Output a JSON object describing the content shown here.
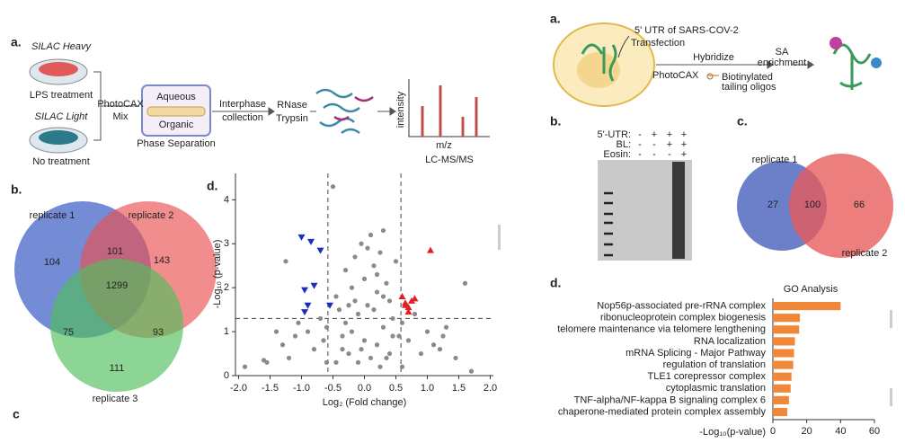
{
  "left": {
    "a": {
      "label": "a.",
      "heavy": "SILAC Heavy",
      "heavy_treatment": "LPS treatment",
      "light": "SILAC Light",
      "light_treatment": "No treatment",
      "mix": [
        "PhotoCAX",
        "Mix"
      ],
      "aqueous": "Aqueous",
      "organic": "Organic",
      "phase": "Phase Separation",
      "interphase": [
        "Interphase",
        "collection"
      ],
      "digest": [
        "RNase",
        "Trypsin"
      ],
      "intensity": "intensity",
      "mz": "m/z",
      "ms": "LC-MS/MS"
    },
    "b": {
      "label": "b.",
      "sets": [
        "replicate 1",
        "replicate 2",
        "replicate 3"
      ],
      "counts": {
        "only1": 104,
        "r12": 101,
        "only2": 143,
        "all": 1299,
        "r13": 75,
        "r23": 93,
        "only3": 111
      }
    },
    "c_label": "c",
    "d_label": "d."
  },
  "right": {
    "a": {
      "label": "a.",
      "utr": "5' UTR of SARS-COV-2",
      "transfection": "Transfection",
      "photocax": "PhotoCAX",
      "hybridize": "Hybridize",
      "oligos": [
        "Biotinylated",
        "tailing oligos"
      ],
      "sa": [
        "SA",
        "enrichment"
      ]
    },
    "b": {
      "label": "b.",
      "rows": [
        {
          "name": "5'-UTR:",
          "lanes": [
            "-",
            "+",
            "+",
            "+"
          ]
        },
        {
          "name": "BL:",
          "lanes": [
            "-",
            "-",
            "+",
            "+"
          ]
        },
        {
          "name": "Eosin:",
          "lanes": [
            "-",
            "-",
            "-",
            "+"
          ]
        }
      ]
    },
    "c": {
      "label": "c.",
      "sets": [
        "replicate 1",
        "replicate 2"
      ],
      "counts": {
        "only1": 27,
        "both": 100,
        "only2": 66
      }
    },
    "d_label": "d."
  },
  "chart_data": [
    {
      "type": "scatter",
      "xlabel": "Log₂ (Fold change)",
      "ylabel": "-Log₁₀ (p-value)",
      "xlim": [
        -2.05,
        2.05
      ],
      "ylim": [
        0,
        4.6
      ],
      "xticks": [
        {
          "value": -2,
          "label": "-2.0"
        },
        {
          "value": -1.5,
          "label": "-1.5"
        },
        {
          "value": -1,
          "label": "-1.0"
        },
        {
          "value": -0.5,
          "label": "-0.5"
        },
        {
          "value": 0,
          "label": "0.0"
        },
        {
          "value": 0.5,
          "label": "0.5"
        },
        {
          "value": 1,
          "label": "1.0"
        },
        {
          "value": 1.5,
          "label": "1.5"
        },
        {
          "value": 2,
          "label": "2.0"
        }
      ],
      "yticks": [
        0,
        1,
        2,
        3,
        4
      ],
      "vlines": [
        -0.58,
        0.58
      ],
      "hline": 1.3,
      "series": [
        {
          "color": "#8a8a8a",
          "marker": "circle",
          "x": [
            -1.9,
            -1.6,
            -1.55,
            -1.4,
            -1.3,
            -1.2,
            -1.1,
            -1.05,
            -0.9,
            -0.8,
            -0.7,
            -0.65,
            -0.6,
            -0.5,
            -0.45,
            -0.4,
            -0.35,
            -0.3,
            -0.3,
            -0.25,
            -0.2,
            -0.2,
            -0.15,
            -0.1,
            -0.1,
            -0.05,
            0,
            0,
            0.05,
            0.1,
            0.1,
            0.15,
            0.2,
            0.2,
            0.25,
            0.3,
            0.3,
            0.35,
            0.4,
            0.4,
            0.45,
            0.5,
            0.55,
            0.6,
            0.7,
            0.8,
            0.9,
            1.0,
            1.1,
            1.2,
            1.3,
            1.45,
            1.6,
            1.7,
            -0.45,
            0.25,
            0.15,
            -0.05,
            0.3,
            0.2,
            -0.35,
            0.45,
            -0.6,
            0.6,
            -1.25,
            1.25,
            -0.15,
            0.05,
            0.35,
            -0.25
          ],
          "values": [
            0.2,
            0.35,
            0.3,
            1.0,
            0.7,
            0.4,
            0.9,
            1.2,
            1.0,
            0.6,
            1.3,
            0.8,
            1.1,
            4.3,
            1.8,
            1.5,
            0.9,
            2.4,
            1.2,
            0.5,
            2.0,
            1.0,
            2.7,
            1.4,
            0.3,
            3.0,
            2.2,
            0.8,
            1.6,
            3.2,
            0.4,
            2.5,
            1.9,
            0.7,
            2.8,
            3.3,
            1.1,
            2.1,
            1.7,
            0.5,
            1.3,
            2.6,
            0.9,
            1.2,
            0.8,
            1.4,
            0.5,
            1.0,
            0.7,
            0.6,
            1.1,
            0.4,
            2.1,
            0.1,
            0.3,
            0.2,
            1.5,
            0.6,
            1.8,
            2.3,
            0.6,
            0.9,
            0.3,
            0.2,
            2.6,
            0.9,
            1.7,
            2.9,
            0.4,
            1.6
          ]
        },
        {
          "color": "#1a2fc0",
          "marker": "triangle-down",
          "x": [
            -1.0,
            -0.85,
            -0.7,
            -0.8,
            -0.95,
            -0.9,
            -0.55,
            -0.95
          ],
          "values": [
            3.15,
            3.05,
            2.85,
            2.05,
            1.95,
            1.6,
            1.6,
            1.45
          ]
        },
        {
          "color": "#e02020",
          "marker": "triangle-up",
          "x": [
            1.05,
            0.6,
            0.65,
            0.7,
            0.75,
            0.8,
            0.7,
            0.65
          ],
          "values": [
            2.85,
            1.8,
            1.65,
            1.55,
            1.7,
            1.75,
            1.45,
            1.6
          ]
        }
      ]
    },
    {
      "type": "bar",
      "orientation": "horizontal",
      "title": "GO Analysis",
      "xlabel": "-Log₁₀(p-value)",
      "categories": [
        "Nop56p-associated pre-rRNA complex",
        "ribonucleoprotein complex biogenesis",
        "telomere maintenance via telomere lengthening",
        "RNA localization",
        "mRNA Splicing - Major Pathway",
        "regulation of translation",
        "TLE1 corepressor complex",
        "cytoplasmic translation",
        "TNF-alpha/NF-kappa B signaling complex 6",
        "chaperone-mediated protein complex assembly"
      ],
      "values": [
        40,
        16,
        15.5,
        13,
        12.5,
        12,
        11,
        10.5,
        9.5,
        8.5
      ],
      "color": "#f0883a",
      "xlim": [
        0,
        60
      ],
      "xticks": [
        0,
        20,
        40,
        60
      ]
    }
  ]
}
